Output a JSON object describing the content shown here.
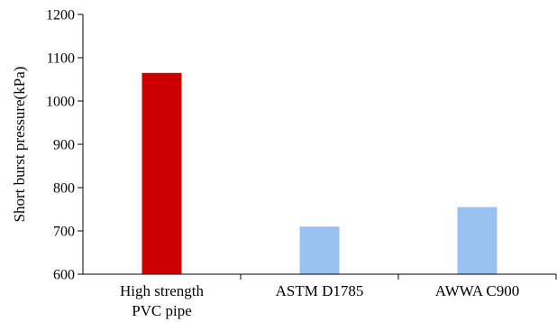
{
  "chart_data": {
    "type": "bar",
    "categories": [
      [
        "High strength",
        "PVC pipe"
      ],
      [
        "ASTM D1785"
      ],
      [
        "AWWA C900"
      ]
    ],
    "values": [
      1065,
      710,
      755
    ],
    "bar_colors": [
      "#cc0000",
      "#99c2f0",
      "#99c2f0"
    ],
    "ylabel": "Short burst pressure(kPa)",
    "xlabel": "",
    "title": "",
    "ylim": [
      600,
      1200
    ],
    "yticks": [
      600,
      700,
      800,
      900,
      1000,
      1100,
      1200
    ],
    "grid": false,
    "legend": "none"
  }
}
